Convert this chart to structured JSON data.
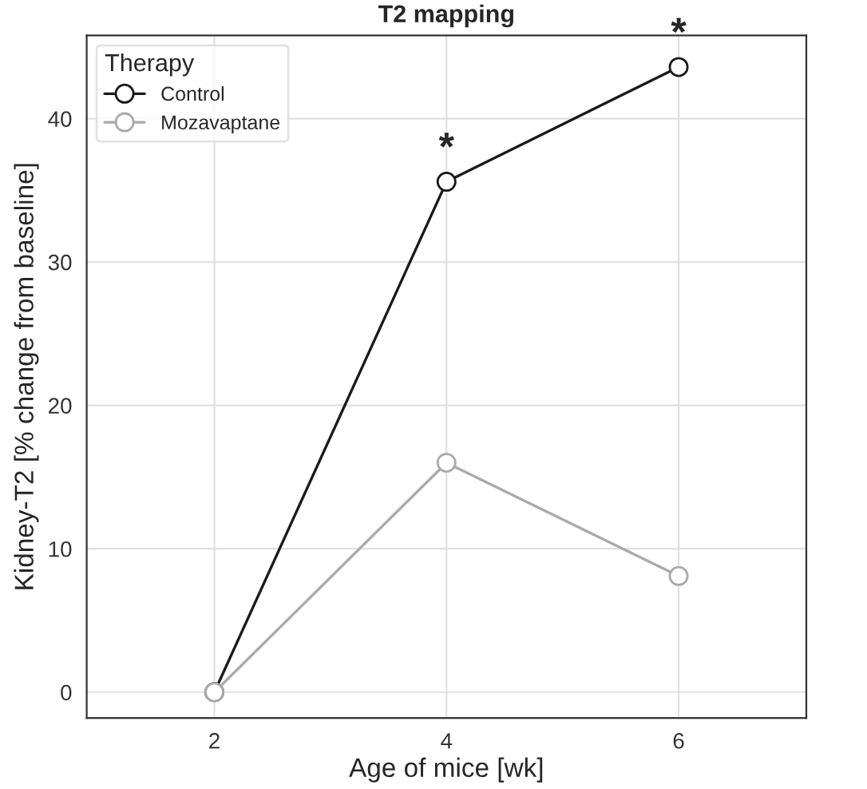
{
  "chart_data": {
    "type": "line",
    "title": "T2 mapping",
    "xlabel": "Age of mice [wk]",
    "ylabel": "Kidney-T2 [% change from baseline]",
    "legend_title": "Therapy",
    "x": [
      2,
      4,
      6
    ],
    "series": [
      {
        "name": "Control",
        "color": "#1a1a1a",
        "values": [
          0,
          35.6,
          43.6
        ]
      },
      {
        "name": "Mozavaptane",
        "color": "#aaaaaa",
        "values": [
          0,
          16,
          8.1
        ]
      }
    ],
    "xlim": [
      0.9,
      7.1
    ],
    "xticks": [
      2,
      4,
      6
    ],
    "ylim": [
      -1.8,
      45.8
    ],
    "yticks": [
      0,
      10,
      20,
      30,
      40
    ],
    "grid": true,
    "legend": "top left",
    "marker": "circle",
    "line_style": "solid",
    "annotations": [
      {
        "text": "*",
        "x": 4,
        "y": 35.6
      },
      {
        "text": "*",
        "x": 6,
        "y": 43.6
      }
    ]
  }
}
